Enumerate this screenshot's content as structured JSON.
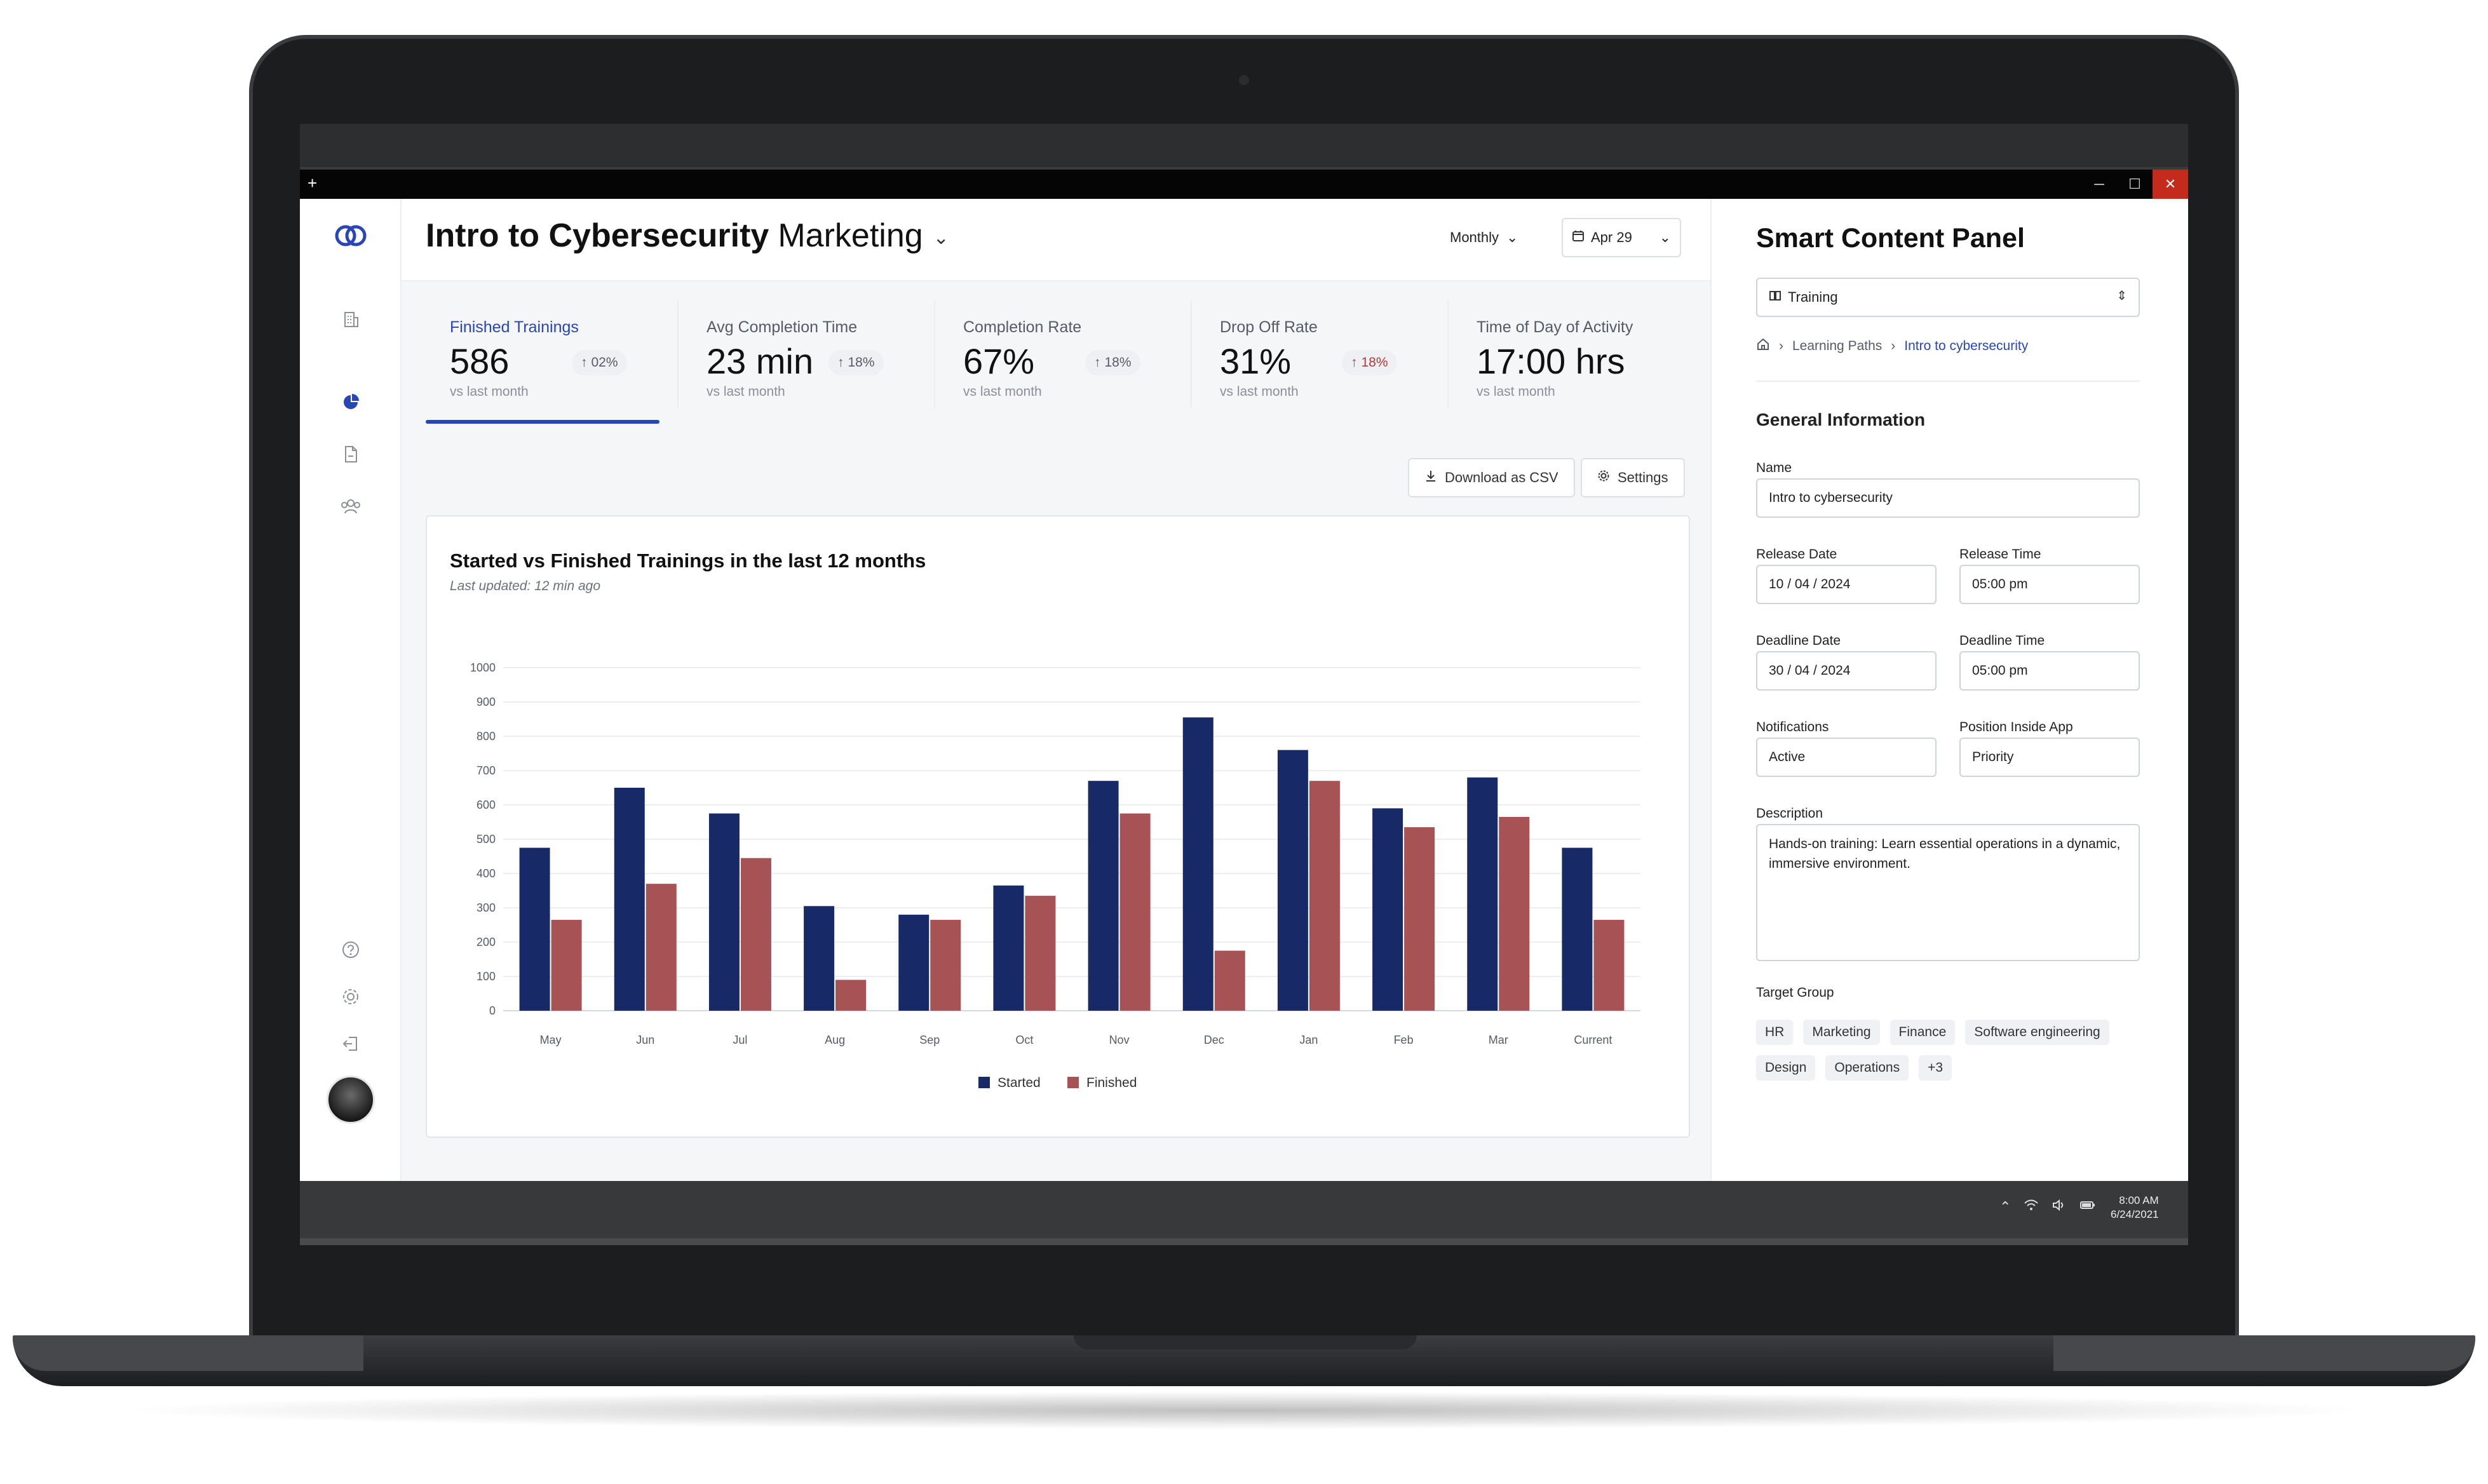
{
  "window": {
    "plus": "+",
    "minimize": "─",
    "maximize": "☐",
    "close": "✕"
  },
  "header": {
    "title": "Intro to Cybersecurity",
    "subtitle": "Marketing",
    "period": "Monthly",
    "date": "Apr 29"
  },
  "kpis": [
    {
      "label": "Finished Trainings",
      "value": "586",
      "badge": "02%",
      "sub": "vs last month",
      "trend": "up"
    },
    {
      "label": "Avg Completion Time",
      "value": "23 min",
      "badge": "18%",
      "sub": "vs last month",
      "trend": "up"
    },
    {
      "label": "Completion Rate",
      "value": "67%",
      "badge": "18%",
      "sub": "vs last month",
      "trend": "up"
    },
    {
      "label": "Drop Off Rate",
      "value": "31%",
      "badge": "18%",
      "sub": "vs last month",
      "trend": "up-red"
    },
    {
      "label": "Time of Day of Activity",
      "value": "17:00 hrs",
      "sub": "vs last month"
    }
  ],
  "actions": {
    "download": "Download as CSV",
    "settings": "Settings"
  },
  "card": {
    "title": "Started vs Finished Trainings in the last 12 months",
    "updated": "Last updated: 12 min ago"
  },
  "chart_data": {
    "type": "bar",
    "categories": [
      "May",
      "Jun",
      "Jul",
      "Aug",
      "Sep",
      "Oct",
      "Nov",
      "Dec",
      "Jan",
      "Feb",
      "Mar",
      "Current"
    ],
    "series": [
      {
        "name": "Started",
        "color": "#172a67",
        "values": [
          475,
          650,
          575,
          305,
          280,
          365,
          670,
          855,
          760,
          590,
          680,
          475
        ]
      },
      {
        "name": "Finished",
        "color": "#a75356",
        "values": [
          265,
          370,
          445,
          90,
          265,
          335,
          575,
          175,
          670,
          535,
          565,
          265
        ]
      }
    ],
    "ylim": [
      0,
      1000
    ],
    "yticks": [
      "0",
      "100",
      "200",
      "300",
      "400",
      "500",
      "600",
      "700",
      "800",
      "900",
      "1000"
    ],
    "grid": true,
    "legend": "bottom-center"
  },
  "panel": {
    "title": "Smart Content Panel",
    "content_type": "Training",
    "breadcrumb": [
      "Learning Paths",
      "Intro to cybersecurity"
    ],
    "section": "General Information",
    "fields": {
      "name": {
        "label": "Name",
        "value": "Intro to cybersecurity"
      },
      "release_date": {
        "label": "Release Date",
        "value": "10 / 04 / 2024"
      },
      "release_time": {
        "label": "Release Time",
        "value": "05:00 pm"
      },
      "deadline_date": {
        "label": "Deadline Date",
        "value": "30 / 04 / 2024"
      },
      "deadline_time": {
        "label": "Deadline Time",
        "value": "05:00 pm"
      },
      "notifications": {
        "label": "Notifications",
        "value": "Active"
      },
      "position": {
        "label": "Position Inside App",
        "value": "Priority"
      },
      "description": {
        "label": "Description",
        "value": "Hands-on training: Learn essential operations in a dynamic, immersive environment."
      }
    },
    "target_group_label": "Target Group",
    "tags": [
      "HR",
      "Marketing",
      "Finance",
      "Software engineering",
      "Design",
      "Operations",
      "+3"
    ]
  },
  "taskbar": {
    "time": "8:00 AM",
    "date": "6/24/2021"
  },
  "colors": {
    "accent": "#2946b8",
    "started": "#172a67",
    "finished": "#a75356"
  }
}
